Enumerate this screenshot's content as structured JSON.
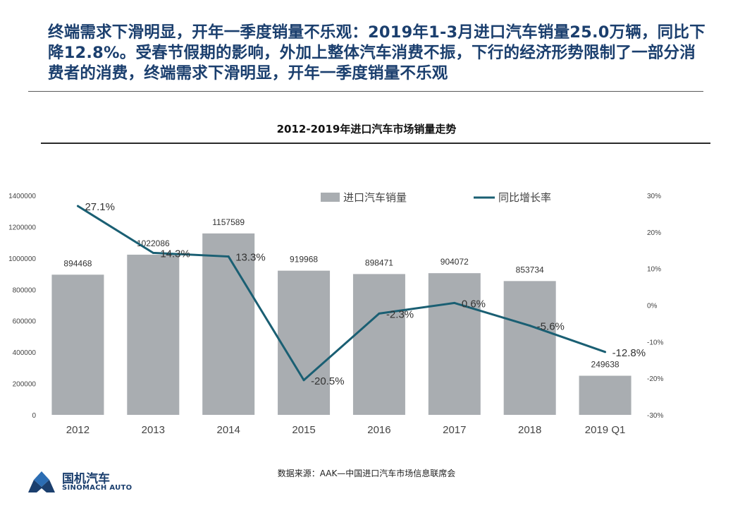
{
  "headline": "终端需求下滑明显，开年一季度销量不乐观：2019年1-3月进口汽车销量25.0万辆，同比下降12.8%。受春节假期的影响，外加上整体汽车消费不振，下行的经济形势限制了一部分消费者的消费，终端需求下滑明显，开年一季度销量不乐观",
  "chart_data": {
    "type": "bar",
    "title": "2012-2019年进口汽车市场销量走势",
    "categories": [
      "2012",
      "2013",
      "2014",
      "2015",
      "2016",
      "2017",
      "2018",
      "2019 Q1"
    ],
    "series": [
      {
        "name": "进口汽车销量",
        "type": "bar",
        "axis": "left",
        "values": [
          894468,
          1022086,
          1157589,
          919968,
          898471,
          904072,
          853734,
          249638
        ],
        "labels": [
          "894468",
          "1022086",
          "1157589",
          "919968",
          "898471",
          "904072",
          "853734",
          "249638"
        ],
        "color": "#a9adb1"
      },
      {
        "name": "同比增长率",
        "type": "line",
        "axis": "right",
        "values": [
          27.1,
          14.3,
          13.3,
          -20.5,
          -2.3,
          0.6,
          -5.6,
          -12.8
        ],
        "labels": [
          "27.1%",
          "14.3%",
          "13.3%",
          "-20.5%",
          "-2.3%",
          "0.6%",
          "-5.6%",
          "-12.8%"
        ],
        "color": "#1a5f73"
      }
    ],
    "y_left": {
      "min": 0,
      "max": 1400000,
      "ticks": [
        "0",
        "200000",
        "400000",
        "600000",
        "800000",
        "1000000",
        "1200000",
        "1400000"
      ]
    },
    "y_right": {
      "min": -30,
      "max": 30,
      "ticks": [
        "-30%",
        "-20%",
        "-10%",
        "0%",
        "10%",
        "20%",
        "30%"
      ]
    },
    "legend_position": "top",
    "grid": false
  },
  "source": "数据来源：AAK—中国进口汽车市场信息联席会",
  "logo": {
    "name_cn": "国机汽车",
    "name_en": "SINOMACH AUTO",
    "color": "#1b3f6e"
  }
}
